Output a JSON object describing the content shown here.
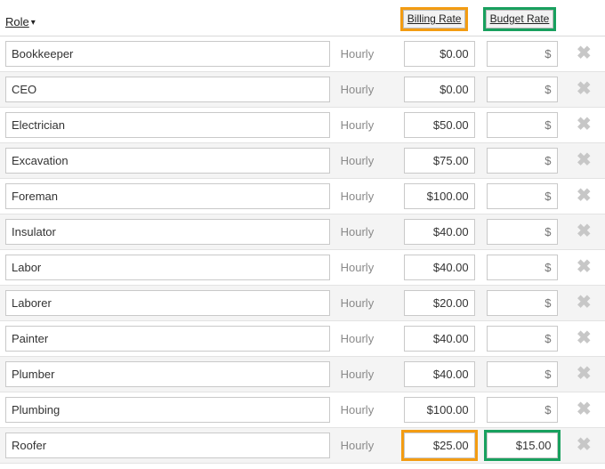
{
  "headers": {
    "role": "Role",
    "billing_rate": "Billing Rate",
    "budget_rate": "Budget Rate"
  },
  "unit_label": "Hourly",
  "currency_placeholder": "$",
  "highlight": {
    "header_billing": "orange",
    "header_budget": "green",
    "row_index": 11,
    "row_billing": "orange",
    "row_budget": "green"
  },
  "colors": {
    "orange": "#f39c12",
    "green": "#18a05e",
    "alt_row": "#f4f4f4",
    "border": "#e3e3e3",
    "muted_text": "#8a8a8a",
    "delete_icon": "#c7c7c7"
  },
  "rows": [
    {
      "role": "Bookkeeper",
      "billing": "$0.00",
      "budget": ""
    },
    {
      "role": "CEO",
      "billing": "$0.00",
      "budget": ""
    },
    {
      "role": "Electrician",
      "billing": "$50.00",
      "budget": ""
    },
    {
      "role": "Excavation",
      "billing": "$75.00",
      "budget": ""
    },
    {
      "role": "Foreman",
      "billing": "$100.00",
      "budget": ""
    },
    {
      "role": "Insulator",
      "billing": "$40.00",
      "budget": ""
    },
    {
      "role": "Labor",
      "billing": "$40.00",
      "budget": ""
    },
    {
      "role": "Laborer",
      "billing": "$20.00",
      "budget": ""
    },
    {
      "role": "Painter",
      "billing": "$40.00",
      "budget": ""
    },
    {
      "role": "Plumber",
      "billing": "$40.00",
      "budget": ""
    },
    {
      "role": "Plumbing",
      "billing": "$100.00",
      "budget": ""
    },
    {
      "role": "Roofer",
      "billing": "$25.00",
      "budget": "$15.00"
    }
  ]
}
